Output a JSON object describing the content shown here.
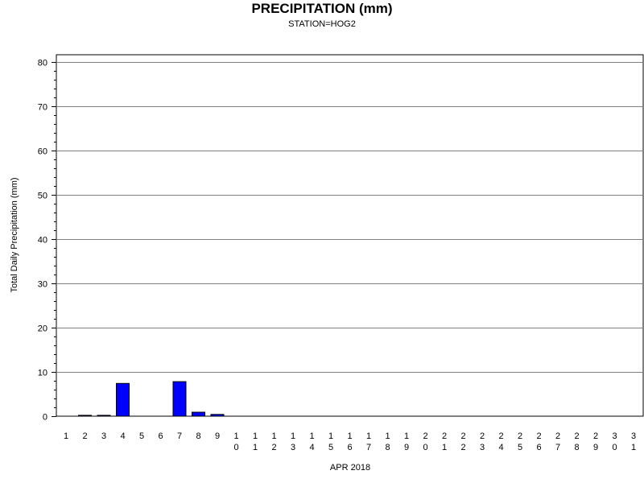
{
  "chart_data": {
    "type": "bar",
    "title": "PRECIPITATION (mm)",
    "subtitle": "STATION=HOG2",
    "xlabel": "APR 2018",
    "ylabel": "Total Daily Precipitation (mm)",
    "ylim": [
      0,
      80
    ],
    "yticks": [
      0,
      10,
      20,
      30,
      40,
      50,
      60,
      70,
      80
    ],
    "grid": true,
    "categories": [
      "1",
      "2",
      "3",
      "4",
      "5",
      "6",
      "7",
      "8",
      "9",
      "10",
      "11",
      "12",
      "13",
      "14",
      "15",
      "16",
      "17",
      "18",
      "19",
      "20",
      "21",
      "22",
      "23",
      "24",
      "25",
      "26",
      "27",
      "28",
      "29",
      "30",
      "31"
    ],
    "values": [
      null,
      0.2,
      0.2,
      7.4,
      null,
      null,
      7.8,
      0.9,
      0.4,
      null,
      null,
      null,
      null,
      null,
      null,
      null,
      null,
      null,
      null,
      null,
      null,
      null,
      null,
      null,
      null,
      null,
      null,
      null,
      null,
      null,
      null
    ],
    "bar_color": "#0000ff"
  }
}
